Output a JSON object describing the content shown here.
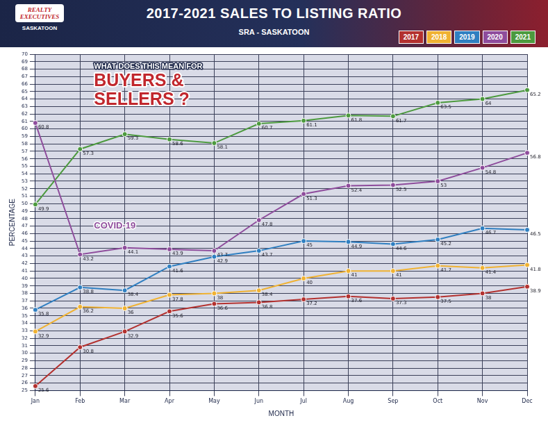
{
  "chart_data": {
    "type": "line",
    "title": "2017-2021 SALES TO LISTING RATIO",
    "subtitle": "SRA - SASKATOON",
    "logo": {
      "name": "REALTY EXECUTIVES",
      "city": "SASKATOON"
    },
    "x_label": "MONTH",
    "y_label": "PERCENTAGE",
    "annotations": [
      "WHAT DOES THIS MEAN FOR",
      "BUYERS &",
      "SELLERS ?",
      "COVID-19"
    ],
    "categories": [
      "Jan",
      "Feb",
      "Mar",
      "Apr",
      "May",
      "Jun",
      "Jul",
      "Aug",
      "Sep",
      "Oct",
      "Nov",
      "Dec"
    ],
    "series": [
      {
        "name": "2017",
        "color": "#b3312f",
        "values": [
          25.6,
          30.8,
          32.9,
          35.6,
          36.6,
          36.8,
          37.2,
          37.6,
          37.3,
          37.5,
          38,
          38.9
        ]
      },
      {
        "name": "2018",
        "color": "#f0b232",
        "values": [
          32.9,
          36.2,
          36.0,
          37.8,
          38,
          38.4,
          40,
          41,
          41,
          41.7,
          41.4,
          41.8
        ]
      },
      {
        "name": "2019",
        "color": "#2f7fc1",
        "values": [
          35.8,
          38.8,
          38.4,
          41.6,
          42.9,
          43.7,
          45,
          44.9,
          44.6,
          45.2,
          46.7,
          46.5
        ]
      },
      {
        "name": "2020",
        "color": "#8e4c9c",
        "values": [
          60.8,
          43.2,
          44.1,
          43.9,
          43.7,
          47.8,
          51.3,
          52.4,
          52.5,
          53.0,
          54.8,
          56.8
        ]
      },
      {
        "name": "2021",
        "color": "#4c9a3e",
        "values": [
          49.9,
          57.3,
          59.3,
          58.6,
          58.1,
          60.7,
          61.1,
          61.8,
          61.7,
          63.5,
          64,
          65.2
        ]
      }
    ],
    "ylim": [
      25,
      70
    ],
    "yticks": [
      25,
      26,
      27,
      28,
      29,
      30,
      31,
      32,
      33,
      34,
      35,
      36,
      37,
      38,
      39,
      40,
      41,
      42,
      43,
      44,
      45,
      46,
      47,
      48,
      49,
      50,
      51,
      52,
      53,
      54,
      55,
      56,
      57,
      58,
      59,
      60,
      61,
      62,
      63,
      64,
      65,
      66,
      67,
      68,
      69,
      70
    ],
    "grid": true,
    "legend": "top-right",
    "marker": "circle",
    "data_labels": true
  }
}
